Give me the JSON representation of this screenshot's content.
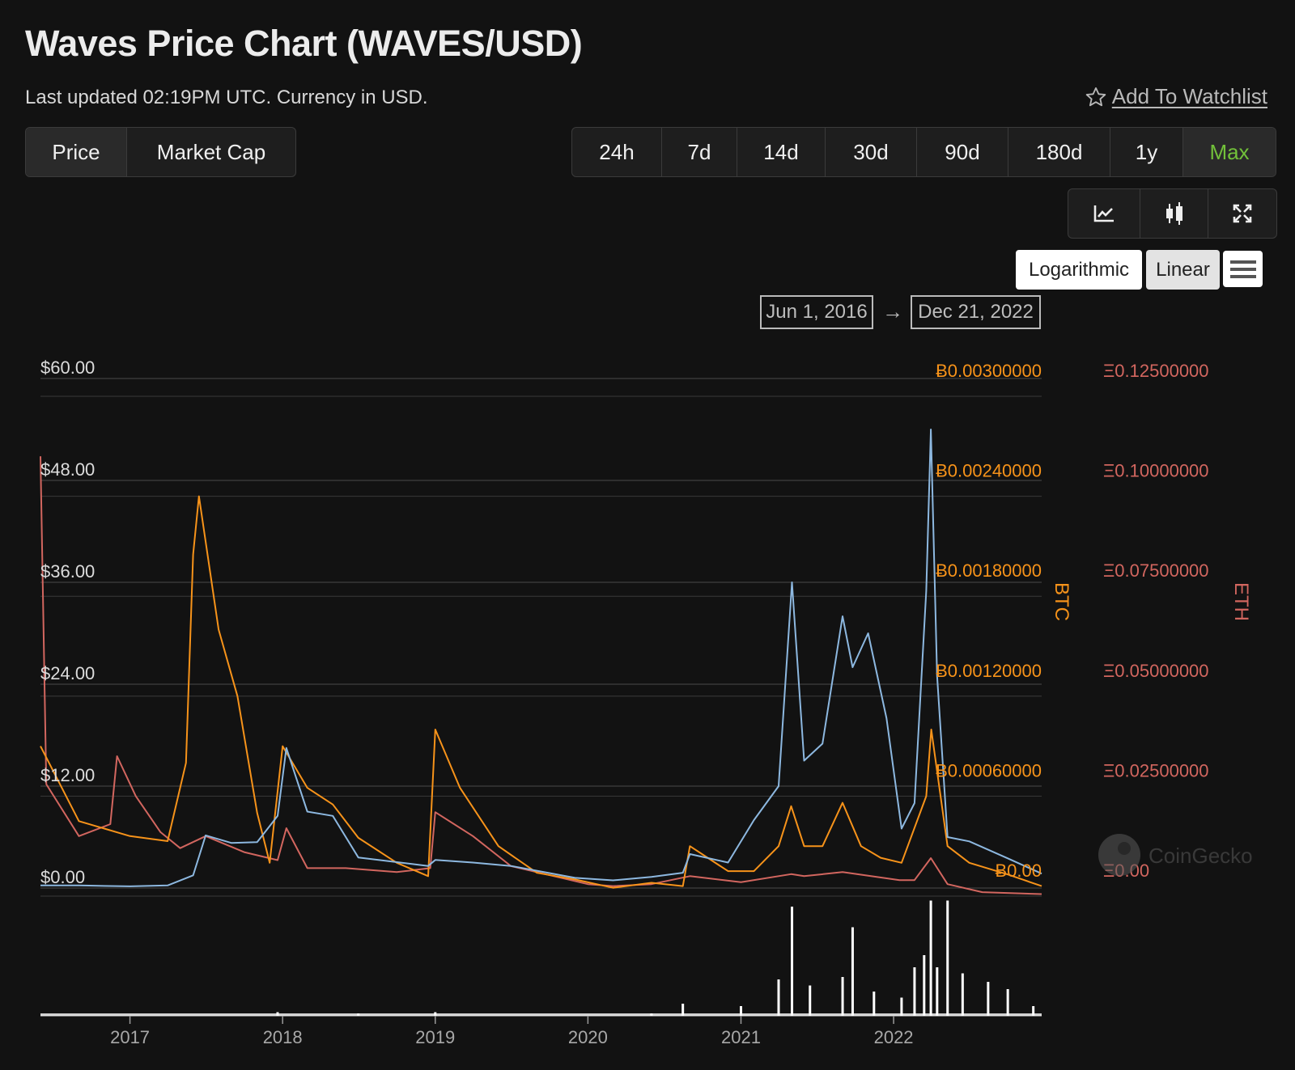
{
  "header": {
    "title": "Waves Price Chart (WAVES/USD)",
    "updated": "Last updated 02:19PM UTC. Currency in USD.",
    "watchlist_label": "Add To Watchlist",
    "watchlist_icon": "star-icon"
  },
  "type_tabs": [
    {
      "label": "Price",
      "active": true
    },
    {
      "label": "Market Cap",
      "active": false
    }
  ],
  "range_tabs": [
    {
      "label": "24h"
    },
    {
      "label": "7d"
    },
    {
      "label": "14d"
    },
    {
      "label": "30d"
    },
    {
      "label": "90d"
    },
    {
      "label": "180d"
    },
    {
      "label": "1y"
    },
    {
      "label": "Max",
      "active": true
    }
  ],
  "view_buttons": [
    {
      "icon": "line-chart-icon"
    },
    {
      "icon": "candlestick-icon"
    },
    {
      "icon": "fullscreen-icon"
    }
  ],
  "scale": {
    "log_label": "Logarithmic",
    "linear_label": "Linear",
    "menu_icon": "hamburger-menu-icon",
    "selected": "Linear"
  },
  "date_range": {
    "from": "Jun 1, 2016",
    "arrow": "→",
    "to": "Dec 21, 2022"
  },
  "watermark": "CoinGecko",
  "colors": {
    "usd": "#8db8e0",
    "btc": "#f7931a",
    "eth": "#d2665f",
    "volume": "#ffffff",
    "active_tab": "#72c13a"
  },
  "chart_data": {
    "type": "line",
    "x_range": [
      "2016-06-01",
      "2022-12-21"
    ],
    "x_ticks": [
      "2017",
      "2018",
      "2019",
      "2020",
      "2021",
      "2022"
    ],
    "grid": true,
    "axes": {
      "usd": {
        "ticks": [
          "$0.00",
          "$12.00",
          "$24.00",
          "$36.00",
          "$48.00",
          "$60.00"
        ],
        "ylim": [
          0,
          60
        ]
      },
      "btc": {
        "label": "BTC",
        "ticks": [
          "Ƀ0.00",
          "Ƀ0.00060000",
          "Ƀ0.00120000",
          "Ƀ0.00180000",
          "Ƀ0.00240000",
          "Ƀ0.00300000"
        ],
        "ylim": [
          0,
          0.003
        ]
      },
      "eth": {
        "label": "ETH",
        "ticks": [
          "Ξ0.00",
          "Ξ0.02500000",
          "Ξ0.05000000",
          "Ξ0.07500000",
          "Ξ0.10000000",
          "Ξ0.12500000"
        ],
        "ylim": [
          0,
          0.125
        ]
      }
    },
    "series": [
      {
        "axis": "usd",
        "x": [
          "2016-06-01",
          "2016-09-01",
          "2017-01-01",
          "2017-04-01",
          "2017-06-01",
          "2017-07-01",
          "2017-09-01",
          "2017-11-01",
          "2017-12-20",
          "2018-01-10",
          "2018-03-01",
          "2018-05-01",
          "2018-07-01",
          "2018-12-15",
          "2019-01-01",
          "2019-04-01",
          "2019-07-01",
          "2019-12-01",
          "2020-03-01",
          "2020-06-01",
          "2020-08-15",
          "2020-09-01",
          "2020-12-01",
          "2021-02-01",
          "2021-04-01",
          "2021-05-03",
          "2021-06-01",
          "2021-07-15",
          "2021-09-01",
          "2021-09-25",
          "2021-11-01",
          "2021-12-15",
          "2022-01-20",
          "2022-02-20",
          "2022-03-20",
          "2022-03-31",
          "2022-04-15",
          "2022-05-10",
          "2022-07-01",
          "2022-10-01",
          "2022-12-21"
        ],
        "y": [
          0.3,
          0.3,
          0.2,
          0.3,
          1.5,
          6.2,
          5.3,
          5.4,
          8.5,
          16.5,
          9.0,
          8.5,
          3.6,
          2.6,
          3.3,
          3.0,
          2.6,
          1.2,
          0.9,
          1.3,
          1.8,
          4.0,
          3.0,
          8.0,
          12.0,
          36.0,
          15.0,
          17.0,
          32.0,
          26.0,
          30.0,
          20.0,
          7.0,
          10.0,
          35.0,
          54.0,
          25.0,
          6.0,
          5.5,
          3.5,
          1.7
        ]
      },
      {
        "axis": "btc",
        "x": [
          "2016-06-01",
          "2016-09-01",
          "2017-01-01",
          "2017-04-01",
          "2017-05-15",
          "2017-06-01",
          "2017-06-15",
          "2017-08-01",
          "2017-09-15",
          "2017-11-01",
          "2017-12-01",
          "2018-01-01",
          "2018-03-01",
          "2018-05-01",
          "2018-07-01",
          "2018-10-01",
          "2018-12-15",
          "2019-01-01",
          "2019-03-01",
          "2019-06-01",
          "2019-09-01",
          "2019-12-01",
          "2020-03-01",
          "2020-06-01",
          "2020-08-15",
          "2020-09-01",
          "2020-12-01",
          "2021-02-01",
          "2021-04-01",
          "2021-05-01",
          "2021-06-01",
          "2021-07-15",
          "2021-09-01",
          "2021-10-15",
          "2021-12-01",
          "2022-01-20",
          "2022-03-20",
          "2022-04-01",
          "2022-05-10",
          "2022-07-01",
          "2022-10-01",
          "2022-12-21"
        ],
        "y": [
          0.0009,
          0.00045,
          0.00036,
          0.00033,
          0.0008,
          0.00205,
          0.0024,
          0.0016,
          0.0012,
          0.0005,
          0.0002,
          0.0009,
          0.00065,
          0.00055,
          0.00035,
          0.0002,
          0.00012,
          0.001,
          0.00065,
          0.0003,
          0.00014,
          0.0001,
          5e-05,
          8e-05,
          6e-05,
          0.0003,
          0.00015,
          0.00015,
          0.0003,
          0.00054,
          0.0003,
          0.0003,
          0.00056,
          0.0003,
          0.00023,
          0.0002,
          0.0006,
          0.001,
          0.0003,
          0.0002,
          0.00013,
          6e-05
        ]
      },
      {
        "axis": "eth",
        "x": [
          "2016-06-01",
          "2016-06-15",
          "2016-09-01",
          "2016-11-15",
          "2016-12-01",
          "2017-01-15",
          "2017-03-15",
          "2017-05-01",
          "2017-07-01",
          "2017-10-01",
          "2017-12-20",
          "2018-01-10",
          "2018-03-01",
          "2018-06-01",
          "2018-10-01",
          "2018-12-20",
          "2019-01-01",
          "2019-04-01",
          "2019-07-01",
          "2020-01-01",
          "2020-03-01",
          "2020-06-01",
          "2020-09-01",
          "2021-01-01",
          "2021-05-01",
          "2021-06-01",
          "2021-09-01",
          "2022-01-15",
          "2022-02-20",
          "2022-03-31",
          "2022-05-10",
          "2022-08-01",
          "2022-12-21"
        ],
        "y": [
          0.11,
          0.028,
          0.015,
          0.018,
          0.035,
          0.025,
          0.016,
          0.012,
          0.015,
          0.011,
          0.009,
          0.017,
          0.007,
          0.007,
          0.006,
          0.007,
          0.021,
          0.015,
          0.0075,
          0.003,
          0.0025,
          0.003,
          0.005,
          0.0035,
          0.0055,
          0.005,
          0.006,
          0.004,
          0.004,
          0.0095,
          0.003,
          0.001,
          0.0005
        ]
      }
    ],
    "volume": {
      "x": [
        "2017-12-20",
        "2018-07-01",
        "2019-01-01",
        "2020-06-01",
        "2020-08-15",
        "2021-01-01",
        "2021-04-01",
        "2021-05-03",
        "2021-06-15",
        "2021-09-01",
        "2021-09-25",
        "2021-11-15",
        "2022-01-20",
        "2022-02-20",
        "2022-03-15",
        "2022-03-31",
        "2022-04-15",
        "2022-05-10",
        "2022-06-15",
        "2022-08-15",
        "2022-10-01",
        "2022-12-01"
      ],
      "y": [
        3,
        2,
        3,
        2,
        10,
        8,
        30,
        90,
        25,
        32,
        73,
        20,
        15,
        40,
        50,
        95,
        40,
        95,
        35,
        28,
        22,
        8
      ]
    }
  }
}
